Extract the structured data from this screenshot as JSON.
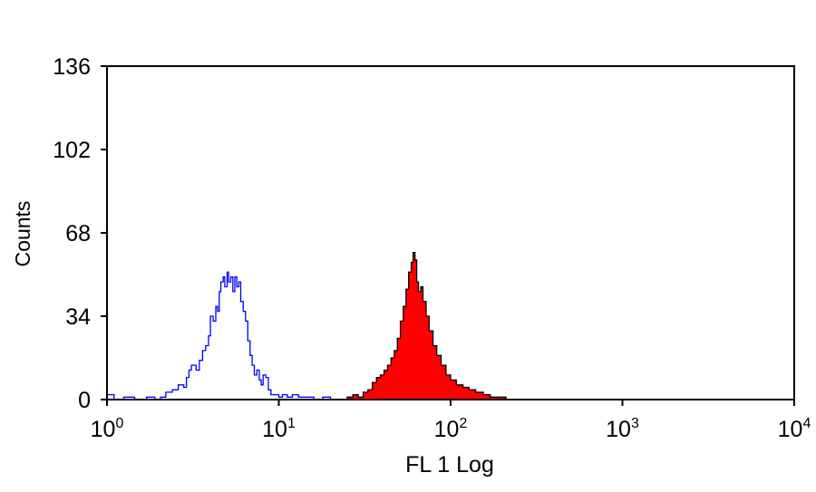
{
  "chart_data": {
    "type": "area",
    "title": "",
    "xlabel": "FL 1 Log",
    "ylabel": "Counts",
    "xscale": "log",
    "xlim": [
      1,
      10000
    ],
    "ylim": [
      0,
      136
    ],
    "grid": false,
    "legend": "none",
    "x_ticks": [
      {
        "value": 1,
        "base": "10",
        "exp": "0"
      },
      {
        "value": 10,
        "base": "10",
        "exp": "1"
      },
      {
        "value": 100,
        "base": "10",
        "exp": "2"
      },
      {
        "value": 1000,
        "base": "10",
        "exp": "3"
      },
      {
        "value": 10000,
        "base": "10",
        "exp": "4"
      }
    ],
    "y_ticks": [
      0,
      34,
      68,
      102,
      136
    ],
    "series": [
      {
        "style": "outline",
        "color": "#0000ff",
        "points": [
          [
            1.0,
            2
          ],
          [
            1.1,
            0
          ],
          [
            1.25,
            1
          ],
          [
            1.45,
            0
          ],
          [
            1.7,
            1
          ],
          [
            1.9,
            0
          ],
          [
            2.05,
            1
          ],
          [
            2.2,
            3
          ],
          [
            2.4,
            4
          ],
          [
            2.6,
            6
          ],
          [
            2.8,
            5
          ],
          [
            2.9,
            9
          ],
          [
            3.0,
            12
          ],
          [
            3.1,
            14
          ],
          [
            3.3,
            12
          ],
          [
            3.45,
            16
          ],
          [
            3.6,
            20
          ],
          [
            3.75,
            22
          ],
          [
            3.9,
            26
          ],
          [
            4.0,
            34
          ],
          [
            4.15,
            32
          ],
          [
            4.3,
            38
          ],
          [
            4.4,
            36
          ],
          [
            4.5,
            44
          ],
          [
            4.6,
            48
          ],
          [
            4.75,
            50
          ],
          [
            4.85,
            46
          ],
          [
            5.0,
            52
          ],
          [
            5.1,
            48
          ],
          [
            5.25,
            50
          ],
          [
            5.4,
            44
          ],
          [
            5.55,
            50
          ],
          [
            5.7,
            46
          ],
          [
            5.85,
            48
          ],
          [
            6.0,
            40
          ],
          [
            6.2,
            36
          ],
          [
            6.4,
            32
          ],
          [
            6.6,
            24
          ],
          [
            6.8,
            18
          ],
          [
            7.0,
            14
          ],
          [
            7.2,
            10
          ],
          [
            7.45,
            12
          ],
          [
            7.7,
            8
          ],
          [
            7.9,
            6
          ],
          [
            8.1,
            10
          ],
          [
            8.4,
            9
          ],
          [
            8.7,
            4
          ],
          [
            9.0,
            2
          ],
          [
            9.5,
            2
          ],
          [
            10.0,
            1
          ],
          [
            10.5,
            2
          ],
          [
            11.2,
            1
          ],
          [
            12.0,
            2
          ],
          [
            13.0,
            1
          ],
          [
            14.5,
            1
          ],
          [
            16.0,
            0
          ],
          [
            18.0,
            1
          ],
          [
            20.0,
            0
          ]
        ]
      },
      {
        "style": "filled",
        "color": "#ff0000",
        "points": [
          [
            23.0,
            0
          ],
          [
            25.0,
            1
          ],
          [
            27.0,
            2
          ],
          [
            29.0,
            1
          ],
          [
            31.0,
            3
          ],
          [
            33.0,
            4
          ],
          [
            35.0,
            7
          ],
          [
            37.0,
            9
          ],
          [
            39.0,
            10
          ],
          [
            41.0,
            12
          ],
          [
            43.0,
            14
          ],
          [
            45.0,
            17
          ],
          [
            47.0,
            20
          ],
          [
            49.0,
            25
          ],
          [
            51.0,
            32
          ],
          [
            53.0,
            38
          ],
          [
            55.0,
            45
          ],
          [
            57.0,
            52
          ],
          [
            59.0,
            56
          ],
          [
            60.5,
            60
          ],
          [
            62.0,
            57
          ],
          [
            63.5,
            48
          ],
          [
            65.0,
            44
          ],
          [
            67.0,
            46
          ],
          [
            69.0,
            40
          ],
          [
            72.0,
            34
          ],
          [
            75.0,
            28
          ],
          [
            79.0,
            22
          ],
          [
            83.0,
            18
          ],
          [
            88.0,
            14
          ],
          [
            94.0,
            10
          ],
          [
            100.0,
            8
          ],
          [
            108.0,
            6
          ],
          [
            118.0,
            5
          ],
          [
            128.0,
            4
          ],
          [
            140.0,
            3
          ],
          [
            155.0,
            2
          ],
          [
            170.0,
            1
          ],
          [
            190.0,
            1
          ],
          [
            210.0,
            0
          ]
        ]
      }
    ]
  }
}
